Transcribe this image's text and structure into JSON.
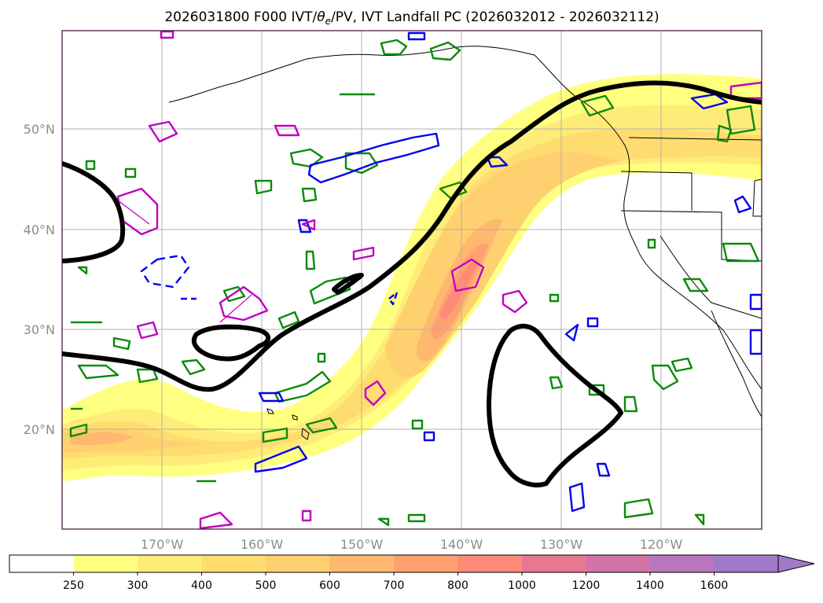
{
  "figure": {
    "title": "2026031800 F000 IVT/θe/PV, IVT Landfall PC (2026032012 - 2026032112)",
    "title_parts": {
      "prefix": "2026031800 F000 IVT/",
      "theta": "θ",
      "sub": "e",
      "suffix": "/PV, IVT Landfall PC (2026032012 - 2026032112)"
    }
  },
  "map": {
    "lon_labels": [
      "170°W",
      "160°W",
      "150°W",
      "140°W",
      "130°W",
      "120°W"
    ],
    "lat_labels": [
      "50°N",
      "40°N",
      "30°N",
      "20°N"
    ],
    "grid": true,
    "frame_color": "#3a0a3a",
    "colors": {
      "landfall_contour": "#000000",
      "theta_e_contour": "#0a8a0a",
      "pv_contour_low": "#0000ee",
      "pv_contour_high": "#c000c0",
      "coastline": "#000000"
    }
  },
  "colorbar": {
    "labels": [
      "250",
      "300",
      "400",
      "500",
      "600",
      "700",
      "800",
      "1000",
      "1200",
      "1400",
      "1600"
    ],
    "colors": [
      "#ffffff",
      "#ffff80",
      "#ffec78",
      "#ffdc70",
      "#ffd070",
      "#ffb870",
      "#ffa070",
      "#ff8a78",
      "#e87890",
      "#d074a8",
      "#b876bc",
      "#a07ac8"
    ],
    "extend": "max"
  },
  "chart_data": {
    "type": "heatmap",
    "variable": "IVT",
    "levels": [
      250,
      300,
      400,
      500,
      600,
      700,
      800,
      1000,
      1200,
      1400,
      1600
    ]
  }
}
